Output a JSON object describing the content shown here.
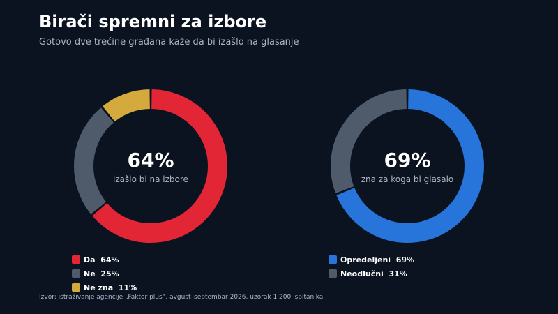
{
  "title": "Birači spremni za izbore",
  "subtitle": "Gotovo dve trećine građana kaže da bi izašlo na glasanje",
  "source": "Izvor: istraživanje agencije „Faktor plus“, avgust–septembar 2026, uzorak 1.200 ispitanika",
  "chart_data": [
    {
      "type": "pie",
      "center_value": "64%",
      "center_label": "izašlo bi na izbore",
      "categories": [
        "Da",
        "Ne",
        "Ne zna"
      ],
      "values": [
        64,
        25,
        11
      ],
      "colors": [
        "#e32636",
        "#4f5b6b",
        "#d4aa3c"
      ],
      "legend_labels": [
        "Da  64%",
        "Ne  25%",
        "Ne zna  11%"
      ]
    },
    {
      "type": "pie",
      "center_value": "69%",
      "center_label": "zna za koga bi glasalo",
      "categories": [
        "Opredeljeni",
        "Neodlučni"
      ],
      "values": [
        69,
        31
      ],
      "colors": [
        "#2775db",
        "#4f5b6b"
      ],
      "legend_labels": [
        "Opredeljeni  69%",
        "Neodlučni  31%"
      ]
    }
  ]
}
